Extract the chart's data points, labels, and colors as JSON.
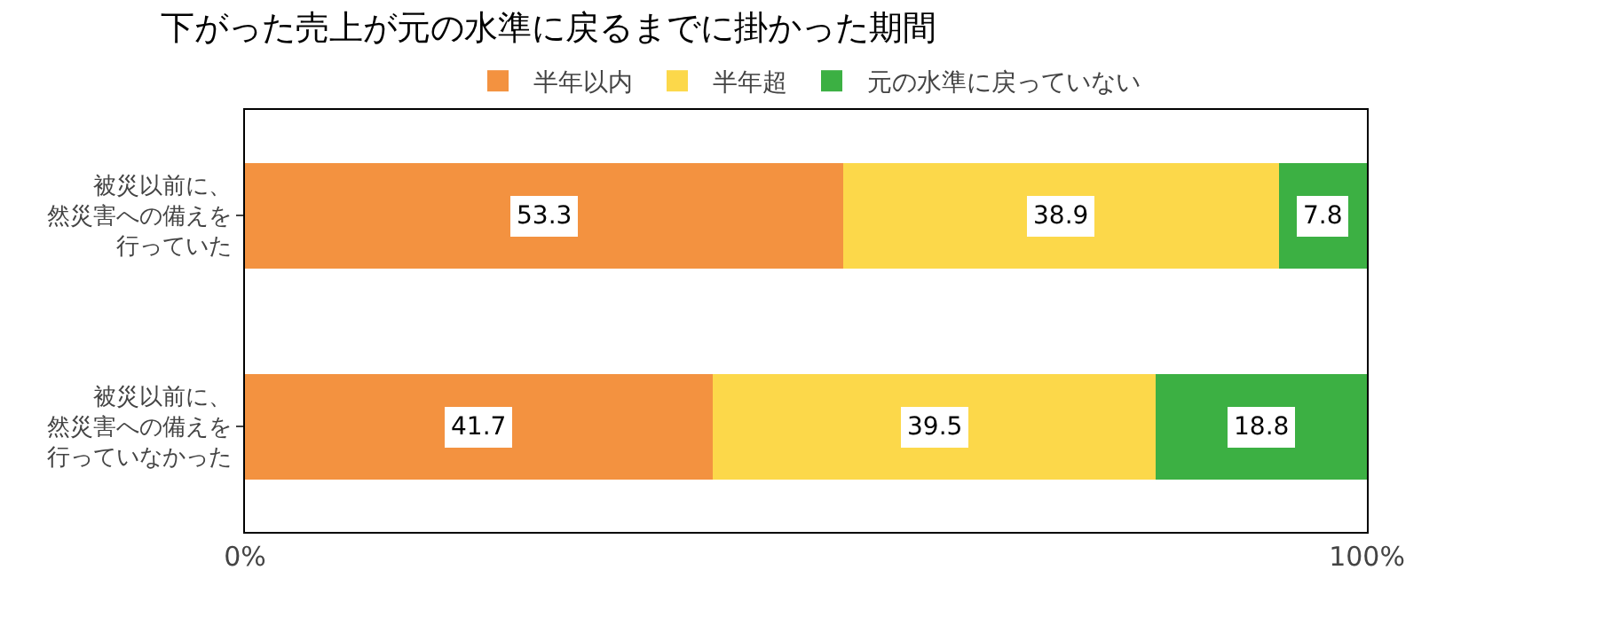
{
  "chart_data": {
    "type": "bar",
    "orientation": "horizontal",
    "stacked": true,
    "title": "下がった売上が元の水準に戻るまでに掛かった期間",
    "categories": [
      "被災以前に、然災害への備えを行っていた",
      "被災以前に、然災害への備えを行っていなかった"
    ],
    "series": [
      {
        "name": "半年以内",
        "color": "#f39240",
        "values": [
          53.3,
          41.7
        ]
      },
      {
        "name": "半年超",
        "color": "#fcd84a",
        "values": [
          38.9,
          39.5
        ]
      },
      {
        "name": "元の水準に戻っていない",
        "color": "#3cb043",
        "values": [
          7.8,
          18.8
        ]
      }
    ],
    "xlim": [
      0,
      100
    ],
    "xticks": [
      {
        "value": 0,
        "label": "0%"
      },
      {
        "value": 100,
        "label": "100%"
      }
    ],
    "data_labels": true,
    "legend": "top"
  }
}
